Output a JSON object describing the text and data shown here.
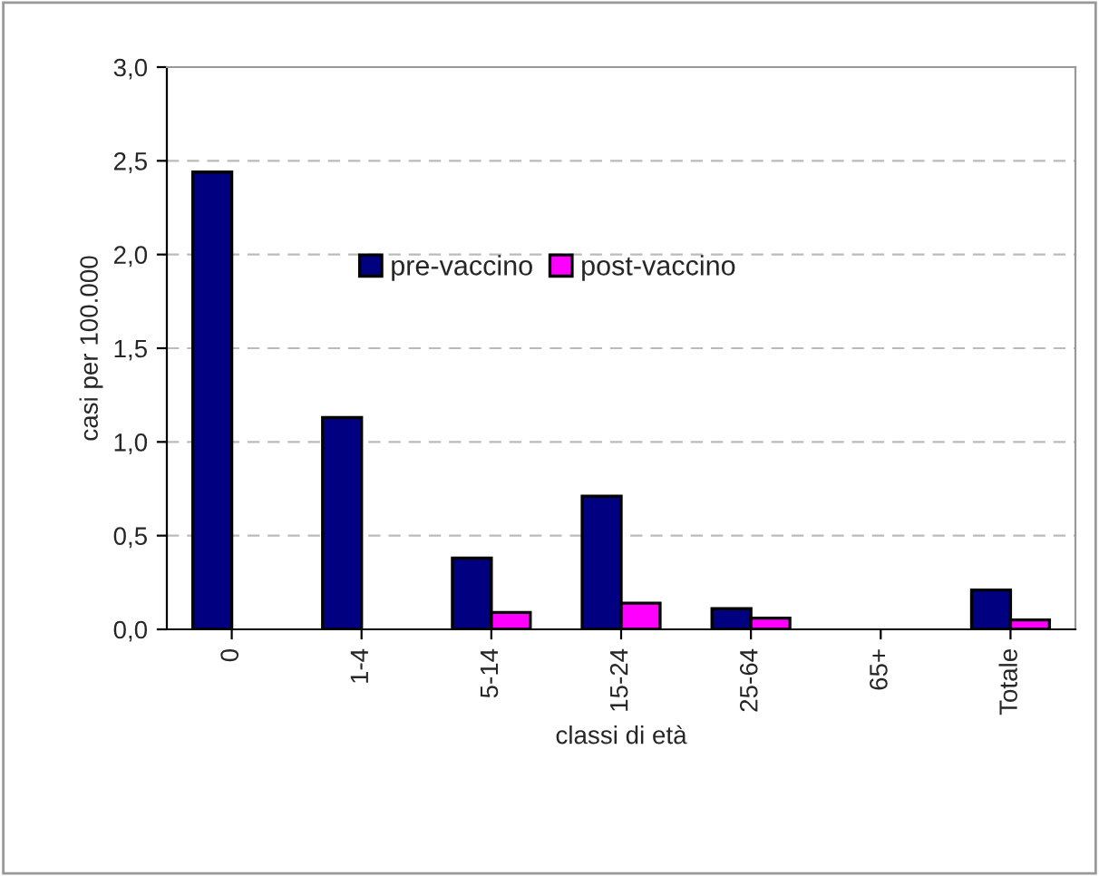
{
  "chart_data": {
    "type": "bar",
    "xlabel": "classi di età",
    "ylabel": "casi per 100.000",
    "categories": [
      "0",
      "1-4",
      "5-14",
      "15-24",
      "25-64",
      "65+",
      "Totale"
    ],
    "series": [
      {
        "name": "pre-vaccino",
        "color": "#000080",
        "values": [
          2.44,
          1.13,
          0.38,
          0.71,
          0.11,
          null,
          0.21
        ]
      },
      {
        "name": "post-vaccino",
        "color": "#ff00ff",
        "values": [
          null,
          null,
          0.09,
          0.14,
          0.06,
          null,
          0.05
        ]
      }
    ],
    "ylim": [
      0,
      3
    ],
    "yticks": [
      {
        "value": 0,
        "label": "0,0"
      },
      {
        "value": 0.5,
        "label": "0,5"
      },
      {
        "value": 1,
        "label": "1,0"
      },
      {
        "value": 1.5,
        "label": "1,5"
      },
      {
        "value": 2,
        "label": "2,0"
      },
      {
        "value": 2.5,
        "label": "2,5"
      },
      {
        "value": 3,
        "label": "3,0"
      }
    ],
    "grid": "y",
    "legend": "center"
  }
}
